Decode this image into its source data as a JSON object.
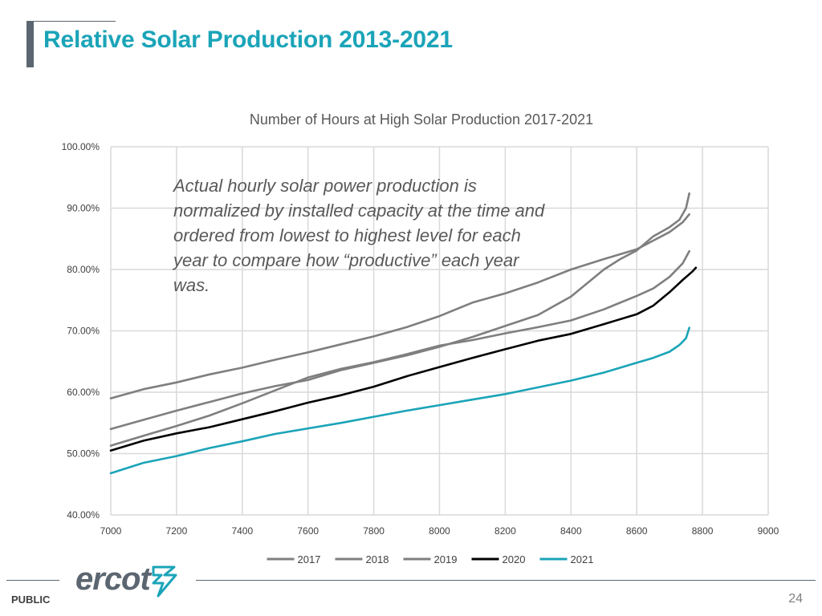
{
  "slide": {
    "title": "Relative Solar Production 2013-2021",
    "annotation": "Actual hourly solar power production is normalized by installed capacity at the time and ordered from lowest to highest level for each year to compare how “productive” each year was.",
    "footer_label": "PUBLIC",
    "page_number": "24",
    "logo_text": "ercot"
  },
  "colors": {
    "accent": "#1ba4b8",
    "gray_series": "#7f7f7f",
    "black_series": "#000000",
    "teal_series": "#1ba4b8",
    "grid": "#d9d9d9"
  },
  "chart_data": {
    "type": "line",
    "title": "Number of Hours at High Solar Production 2017-2021",
    "xlabel": "",
    "ylabel": "",
    "xlim": [
      7000,
      9000
    ],
    "ylim": [
      40,
      100
    ],
    "x_ticks": [
      7000,
      7200,
      7400,
      7600,
      7800,
      8000,
      8200,
      8400,
      8600,
      8800,
      9000
    ],
    "x_tick_labels": [
      "7000",
      "7200",
      "7400",
      "7600",
      "7800",
      "8000",
      "8200",
      "8400",
      "8600",
      "8800",
      "9000"
    ],
    "y_ticks": [
      40,
      50,
      60,
      70,
      80,
      90,
      100
    ],
    "y_tick_labels": [
      "40.00%",
      "50.00%",
      "60.00%",
      "70.00%",
      "80.00%",
      "90.00%",
      "100.00%"
    ],
    "grid": true,
    "legend_position": "bottom",
    "series": [
      {
        "name": "2017",
        "color": "#7f7f7f",
        "x": [
          7000,
          7100,
          7200,
          7300,
          7400,
          7500,
          7600,
          7700,
          7800,
          7900,
          8000,
          8100,
          8200,
          8300,
          8400,
          8500,
          8600,
          8650,
          8700,
          8740,
          8760
        ],
        "y": [
          59,
          60.5,
          61.6,
          62.9,
          64,
          65.3,
          66.5,
          67.8,
          69.1,
          70.6,
          72.4,
          74.6,
          76.1,
          77.9,
          80,
          81.7,
          83.3,
          84.7,
          86.1,
          87.7,
          89
        ]
      },
      {
        "name": "2018",
        "color": "#7f7f7f",
        "x": [
          7000,
          7100,
          7200,
          7300,
          7400,
          7500,
          7600,
          7700,
          7800,
          7900,
          8000,
          8100,
          8200,
          8300,
          8400,
          8500,
          8550,
          8600,
          8650,
          8700,
          8730,
          8750,
          8760
        ],
        "y": [
          54,
          55.5,
          57,
          58.4,
          59.8,
          61,
          62,
          63.6,
          64.8,
          66,
          67.4,
          69,
          70.8,
          72.6,
          75.6,
          80,
          81.7,
          83.1,
          85.4,
          86.9,
          88.1,
          90,
          92.4
        ]
      },
      {
        "name": "2019",
        "color": "#7f7f7f",
        "x": [
          7000,
          7100,
          7200,
          7300,
          7400,
          7500,
          7600,
          7700,
          7800,
          7900,
          8000,
          8100,
          8200,
          8300,
          8400,
          8500,
          8600,
          8650,
          8700,
          8740,
          8760
        ],
        "y": [
          51.3,
          52.9,
          54.5,
          56.2,
          58.2,
          60.3,
          62.4,
          63.8,
          64.9,
          66.2,
          67.6,
          68.5,
          69.6,
          70.6,
          71.7,
          73.5,
          75.7,
          76.9,
          78.8,
          81,
          83
        ]
      },
      {
        "name": "2020",
        "color": "#000000",
        "x": [
          7000,
          7100,
          7200,
          7300,
          7400,
          7500,
          7600,
          7700,
          7800,
          7900,
          8000,
          8100,
          8200,
          8300,
          8400,
          8500,
          8600,
          8650,
          8700,
          8740,
          8770,
          8780
        ],
        "y": [
          50.5,
          52.1,
          53.3,
          54.3,
          55.6,
          56.9,
          58.3,
          59.5,
          60.9,
          62.6,
          64.1,
          65.6,
          67,
          68.4,
          69.5,
          71.1,
          72.7,
          74.1,
          76.3,
          78.3,
          79.7,
          80.3
        ]
      },
      {
        "name": "2021",
        "color": "#1ba4b8",
        "x": [
          7000,
          7100,
          7200,
          7300,
          7400,
          7500,
          7600,
          7700,
          7800,
          7900,
          8000,
          8100,
          8200,
          8300,
          8400,
          8500,
          8600,
          8650,
          8700,
          8730,
          8750,
          8760
        ],
        "y": [
          46.8,
          48.5,
          49.6,
          50.9,
          52,
          53.2,
          54.1,
          55,
          56,
          57,
          57.9,
          58.8,
          59.7,
          60.8,
          61.9,
          63.2,
          64.8,
          65.6,
          66.6,
          67.7,
          68.8,
          70.5
        ]
      }
    ]
  }
}
